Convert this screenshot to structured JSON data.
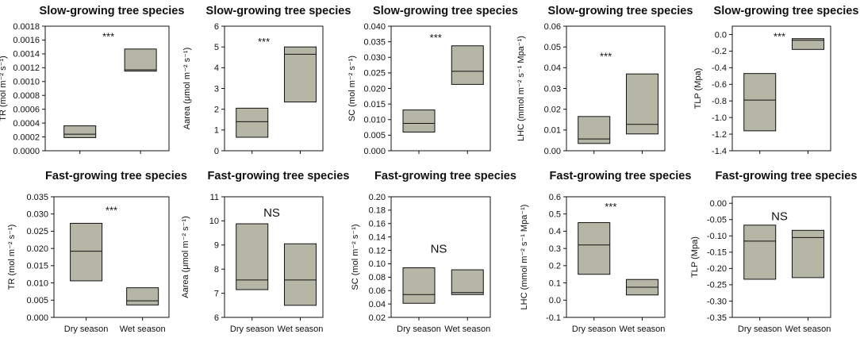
{
  "chart_data": [
    {
      "type": "box",
      "title": "Slow-growing tree species",
      "ylabel": "TR (mol m⁻² s⁻¹)",
      "ylim": [
        0,
        0.0018
      ],
      "yticks": [
        "0.0000",
        "0.0002",
        "0.0004",
        "0.0006",
        "0.0008",
        "0.0010",
        "0.0012",
        "0.0014",
        "0.0016",
        "0.0018"
      ],
      "categories": [
        "Dry season",
        "Wet season"
      ],
      "show_xlabels": false,
      "boxes": [
        {
          "q1": 0.00019,
          "median": 0.00024,
          "q3": 0.00036
        },
        {
          "q1": 0.00115,
          "median": 0.00117,
          "q3": 0.00147
        }
      ],
      "annotation": "***"
    },
    {
      "type": "box",
      "title": "Slow-growing tree species",
      "ylabel": "Aarea (μmol m⁻² s⁻¹)",
      "ylim": [
        0,
        6
      ],
      "yticks": [
        "0",
        "1",
        "2",
        "3",
        "4",
        "5",
        "6"
      ],
      "categories": [
        "Dry season",
        "Wet season"
      ],
      "show_xlabels": false,
      "boxes": [
        {
          "q1": 0.65,
          "median": 1.4,
          "q3": 2.05
        },
        {
          "q1": 2.35,
          "median": 4.65,
          "q3": 5.0
        }
      ],
      "annotation": "***"
    },
    {
      "type": "box",
      "title": "Slow-growing tree species",
      "ylabel": "SC (mol m⁻² s⁻¹)",
      "ylim": [
        0,
        0.04
      ],
      "yticks": [
        "0.000",
        "0.005",
        "0.010",
        "0.015",
        "0.020",
        "0.025",
        "0.030",
        "0.035",
        "0.040"
      ],
      "categories": [
        "Dry season",
        "Wet season"
      ],
      "show_xlabels": false,
      "boxes": [
        {
          "q1": 0.006,
          "median": 0.0088,
          "q3": 0.0131
        },
        {
          "q1": 0.0213,
          "median": 0.0255,
          "q3": 0.0337
        }
      ],
      "annotation": "***"
    },
    {
      "type": "box",
      "title": "Slow-growing tree species",
      "ylabel": "LHC (mmol m⁻² s⁻¹ Mpa⁻¹)",
      "ylim": [
        0,
        0.06
      ],
      "yticks": [
        "0.00",
        "0.01",
        "0.02",
        "0.03",
        "0.04",
        "0.05",
        "0.06"
      ],
      "categories": [
        "Dry season",
        "Wet season"
      ],
      "show_xlabels": false,
      "boxes": [
        {
          "q1": 0.0035,
          "median": 0.0057,
          "q3": 0.0165
        },
        {
          "q1": 0.0081,
          "median": 0.0127,
          "q3": 0.037
        }
      ],
      "annotation": "***"
    },
    {
      "type": "box",
      "title": "Slow-growing tree species",
      "ylabel": "TLP (Mpa)",
      "ylim": [
        -1.4,
        0.1
      ],
      "yticks": [
        "0.0",
        "-0.2",
        "-0.4",
        "-0.6",
        "-0.8",
        "-1.0",
        "-1.2",
        "-1.4"
      ],
      "categories": [
        "Dry season",
        "Wet season"
      ],
      "show_xlabels": false,
      "boxes": [
        {
          "q1": -1.16,
          "median": -0.79,
          "q3": -0.47
        },
        {
          "q1": -0.18,
          "median": -0.07,
          "q3": -0.05
        }
      ],
      "annotation": "***"
    },
    {
      "type": "box",
      "title": "Fast-growing tree species",
      "ylabel": "TR (mol m⁻² s⁻¹)",
      "ylim": [
        0,
        0.035
      ],
      "yticks": [
        "0.000",
        "0.005",
        "0.010",
        "0.015",
        "0.020",
        "0.025",
        "0.030",
        "0.035"
      ],
      "categories": [
        "Dry season",
        "Wet season"
      ],
      "show_xlabels": true,
      "boxes": [
        {
          "q1": 0.0106,
          "median": 0.0192,
          "q3": 0.0273
        },
        {
          "q1": 0.0036,
          "median": 0.0048,
          "q3": 0.0086
        }
      ],
      "annotation": "***"
    },
    {
      "type": "box",
      "title": "Fast-growing tree species",
      "ylabel": "Aarea (μmol m⁻² s⁻¹)",
      "ylim": [
        6,
        11
      ],
      "yticks": [
        "6",
        "7",
        "8",
        "9",
        "10",
        "11"
      ],
      "categories": [
        "Dry season",
        "Wet season"
      ],
      "show_xlabels": true,
      "boxes": [
        {
          "q1": 7.15,
          "median": 7.55,
          "q3": 9.88
        },
        {
          "q1": 6.5,
          "median": 7.55,
          "q3": 9.05
        }
      ],
      "annotation": "NS"
    },
    {
      "type": "box",
      "title": "Fast-growing tree species",
      "ylabel": "SC (mol m⁻² s⁻¹)",
      "ylim": [
        0.02,
        0.2
      ],
      "yticks": [
        "0.02",
        "0.04",
        "0.06",
        "0.08",
        "0.10",
        "0.12",
        "0.14",
        "0.16",
        "0.18",
        "0.20"
      ],
      "categories": [
        "Dry season",
        "Wet season"
      ],
      "show_xlabels": true,
      "boxes": [
        {
          "q1": 0.041,
          "median": 0.054,
          "q3": 0.094
        },
        {
          "q1": 0.054,
          "median": 0.057,
          "q3": 0.091
        }
      ],
      "annotation": "NS"
    },
    {
      "type": "box",
      "title": "Fast-growing tree species",
      "ylabel": "LHC (mmol m⁻² s⁻¹ Mpa⁻¹)",
      "ylim": [
        -0.1,
        0.6
      ],
      "yticks": [
        "-0.1",
        "0.0",
        "0.1",
        "0.2",
        "0.3",
        "0.4",
        "0.5",
        "0.6"
      ],
      "categories": [
        "Dry season",
        "Wet season"
      ],
      "show_xlabels": true,
      "boxes": [
        {
          "q1": 0.15,
          "median": 0.32,
          "q3": 0.45
        },
        {
          "q1": 0.03,
          "median": 0.075,
          "q3": 0.12
        }
      ],
      "annotation": "***"
    },
    {
      "type": "box",
      "title": "Fast-growing tree species",
      "ylabel": "TLP (Mpa)",
      "ylim": [
        -0.35,
        0.02
      ],
      "yticks": [
        "0.00",
        "-0.05",
        "-0.10",
        "-0.15",
        "-0.20",
        "-0.25",
        "-0.30",
        "-0.35"
      ],
      "categories": [
        "Dry season",
        "Wet season"
      ],
      "show_xlabels": true,
      "boxes": [
        {
          "q1": -0.233,
          "median": -0.116,
          "q3": -0.067
        },
        {
          "q1": -0.228,
          "median": -0.105,
          "q3": -0.083
        }
      ],
      "annotation": "NS"
    }
  ]
}
